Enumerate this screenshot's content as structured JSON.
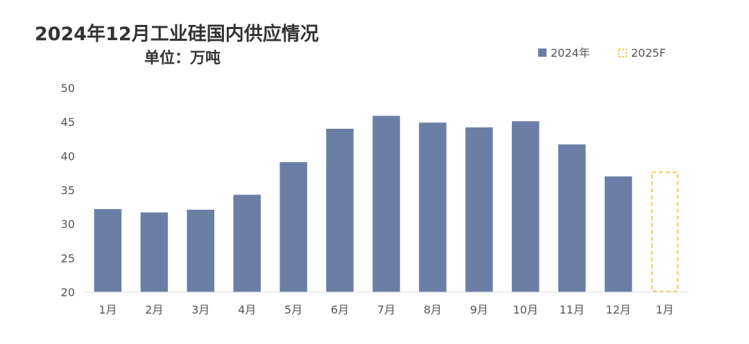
{
  "chart_data": {
    "type": "bar",
    "title": "2024年12月工业硅国内供应情况",
    "subtitle": "单位：万吨",
    "categories": [
      "1月",
      "2月",
      "3月",
      "4月",
      "5月",
      "6月",
      "7月",
      "8月",
      "9月",
      "10月",
      "11月",
      "12月",
      "1月"
    ],
    "series": [
      {
        "name": "2024年",
        "color": "#6b7fa6",
        "style": "solid",
        "values": [
          32.2,
          31.7,
          32.1,
          34.3,
          39.1,
          44.0,
          45.9,
          44.9,
          44.2,
          45.1,
          41.7,
          37.0,
          null
        ]
      },
      {
        "name": "2025F",
        "color": "#f6c94e",
        "style": "dashed",
        "values": [
          null,
          null,
          null,
          null,
          null,
          null,
          null,
          null,
          null,
          null,
          null,
          null,
          37.6
        ]
      }
    ],
    "ylim": [
      20,
      50
    ],
    "yticks": [
      20,
      25,
      30,
      35,
      40,
      45,
      50
    ],
    "grid": false,
    "legend_position": "top-right"
  }
}
